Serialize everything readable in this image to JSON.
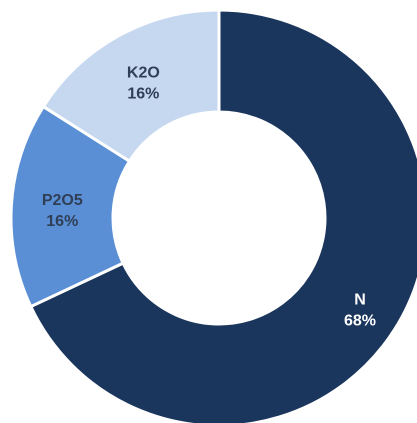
{
  "chart_data": {
    "type": "pie",
    "donut": true,
    "categories": [
      "N",
      "P2O5",
      "K2O"
    ],
    "values": [
      68,
      16,
      16
    ],
    "value_labels": [
      "68%",
      "16%",
      "16%"
    ],
    "colors": [
      "#1b365d",
      "#5a8fd6",
      "#c5d8f0"
    ],
    "label_colors": [
      "#ffffff",
      "#2f3f55",
      "#2f3f55"
    ],
    "legend": "none"
  }
}
